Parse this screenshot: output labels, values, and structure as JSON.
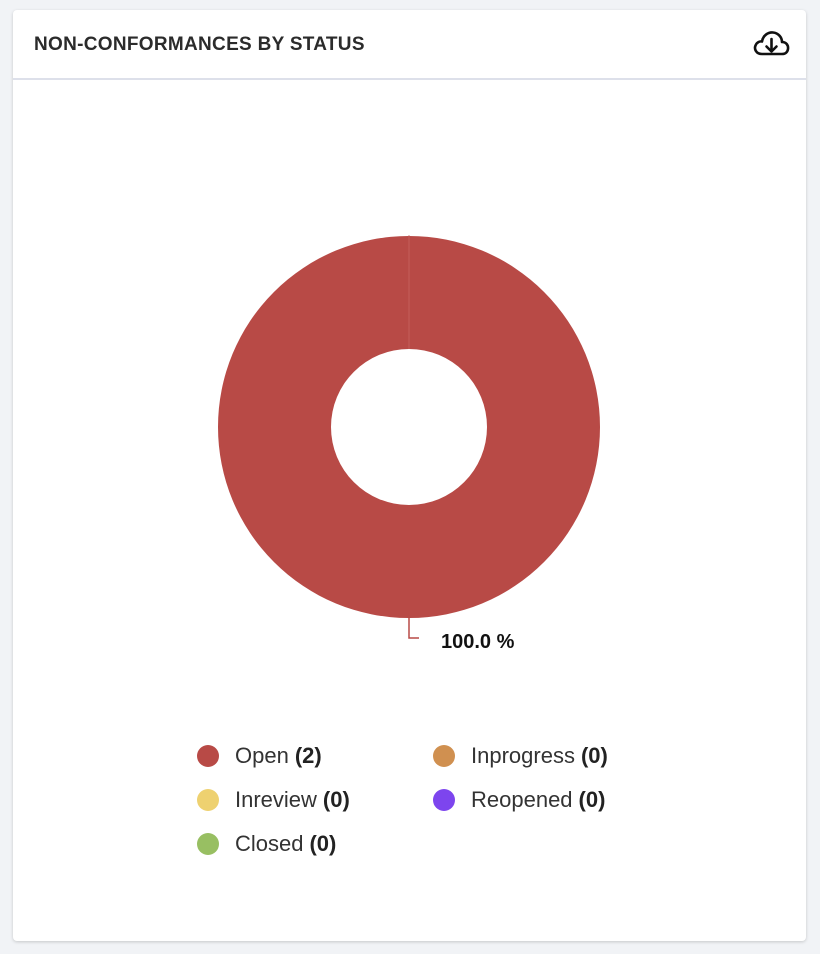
{
  "header": {
    "title": "NON-CONFORMANCES BY STATUS",
    "download_icon": "cloud-download-icon"
  },
  "chart_data": {
    "type": "pie",
    "variant": "donut",
    "slices": [
      {
        "label": "Open",
        "value": 2,
        "color": "#b84a46"
      },
      {
        "label": "Inprogress",
        "value": 0,
        "color": "#d09050"
      },
      {
        "label": "Inreview",
        "value": 0,
        "color": "#eed170"
      },
      {
        "label": "Reopened",
        "value": 0,
        "color": "#7d45ee"
      },
      {
        "label": "Closed",
        "value": 0,
        "color": "#98bf62"
      }
    ],
    "data_labels": [
      "100.0 %"
    ],
    "legend_position": "bottom"
  },
  "legend": {
    "items": [
      {
        "label": "Open",
        "count": "(2)",
        "color": "#b84a46"
      },
      {
        "label": "Inprogress",
        "count": "(0)",
        "color": "#d09050"
      },
      {
        "label": "Inreview",
        "count": "(0)",
        "color": "#eed170"
      },
      {
        "label": "Reopened",
        "count": "(0)",
        "color": "#7d45ee"
      },
      {
        "label": "Closed",
        "count": "(0)",
        "color": "#98bf62"
      }
    ]
  }
}
